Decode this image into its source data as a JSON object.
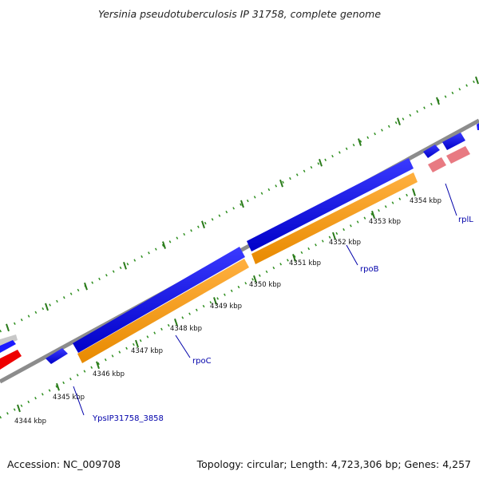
{
  "title": "Yersinia pseudotuberculosis IP 31758, complete genome",
  "accession": "Accession: NC_009708",
  "topology": "Topology: circular; Length: 4,723,306 bp; Genes: 4,257",
  "ticks": [
    "4344 kbp",
    "4345 kbp",
    "4346 kbp",
    "4347 kbp",
    "4348 kbp",
    "4349 kbp",
    "4350 kbp",
    "4351 kbp",
    "4352 kbp",
    "4353 kbp",
    "4354 kbp"
  ],
  "genes": {
    "ypsip": "YpsIP31758_3858",
    "rpoc": "rpoC",
    "rpob": "rpoB",
    "rpll": "rplL"
  },
  "colors": {
    "backbone": "#8c8c8c",
    "forward_gene": "#0000ee",
    "cds": "#ff9900",
    "rrna": "#ff0000",
    "trna": "#f08080",
    "tick_major": "#2a7a1a",
    "tick_minor": "#33aa33"
  }
}
